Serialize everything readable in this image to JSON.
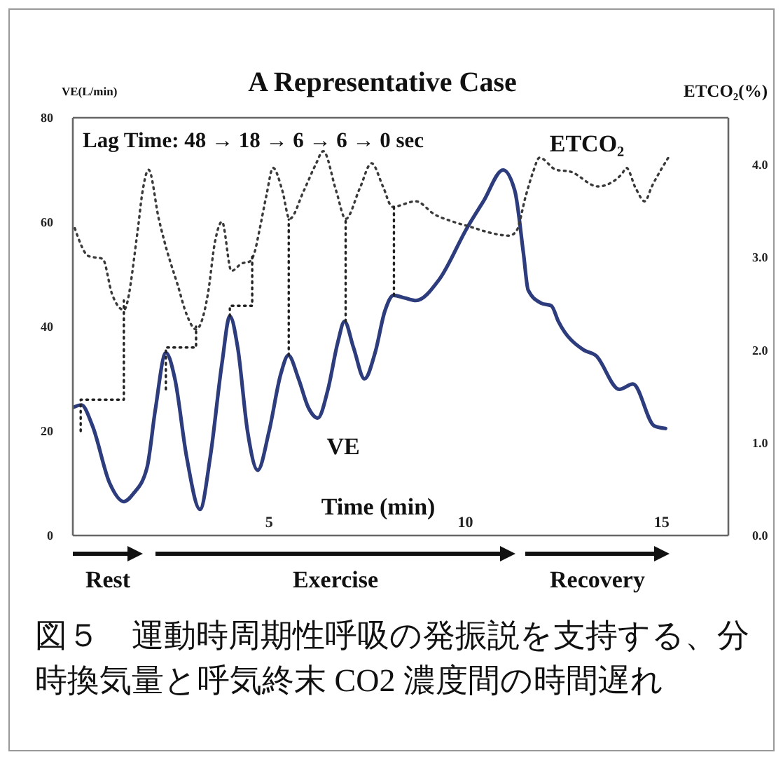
{
  "chart_data": {
    "type": "line",
    "title": "A Representative Case",
    "xlabel": "Time (min)",
    "ylabel": "VE(L/min)",
    "y2label": "ETCO₂(%)",
    "xlim": [
      0,
      16.7
    ],
    "xticks": [
      5,
      10,
      15
    ],
    "ylim": [
      0,
      80
    ],
    "yticks": [
      0,
      20,
      40,
      60,
      80
    ],
    "y2lim": [
      0,
      4.5
    ],
    "y2ticks": [
      {
        "value": 0,
        "label": "0.0"
      },
      {
        "value": 1,
        "label": "1.0"
      },
      {
        "value": 2,
        "label": "2.0"
      },
      {
        "value": 3,
        "label": "3.0"
      },
      {
        "value": 4,
        "label": "4.0"
      }
    ],
    "marker": "none",
    "series": [
      {
        "name": "VE",
        "color": "#2d3c7c",
        "line_style": "solid",
        "x": [
          0,
          0.22,
          0.5,
          0.94,
          1.3,
          1.54,
          1.89,
          2.1,
          2.37,
          2.6,
          2.9,
          3.24,
          3.5,
          3.8,
          4.0,
          4.2,
          4.45,
          4.71,
          5.0,
          5.3,
          5.49,
          5.75,
          6.0,
          6.24,
          6.5,
          6.75,
          6.92,
          7.15,
          7.43,
          7.7,
          7.95,
          8.17,
          8.45,
          8.74,
          9.33,
          10.05,
          10.46,
          10.96,
          11.26,
          11.48,
          11.6,
          11.93,
          12.19,
          12.37,
          13.02,
          13.32,
          13.92,
          14.27,
          14.81,
          15.1
        ],
        "values": [
          24.5,
          25,
          21,
          10,
          6.5,
          8,
          13,
          24,
          35,
          30,
          15,
          5,
          15,
          33,
          42,
          36,
          20,
          12.5,
          20,
          31,
          34.5,
          30,
          24.5,
          22.5,
          28,
          37,
          41,
          36,
          30,
          35,
          43,
          46,
          45.5,
          45,
          49,
          59,
          64,
          70,
          66,
          54,
          47,
          44.5,
          44,
          41,
          35.5,
          34.5,
          28,
          29,
          21,
          20.5
        ]
      },
      {
        "name": "ETCO₂",
        "color": "#3a3a3a",
        "line_style": "dotted",
        "axis": "y2",
        "x": [
          0.05,
          0.4,
          0.76,
          1.0,
          1.3,
          1.65,
          1.77,
          1.93,
          2.19,
          2.37,
          2.67,
          2.9,
          3.14,
          3.44,
          3.62,
          3.8,
          4.04,
          4.3,
          4.5,
          4.63,
          4.75,
          4.93,
          5.1,
          5.34,
          5.52,
          5.88,
          6.18,
          6.38,
          6.71,
          6.95,
          7.31,
          7.61,
          7.9,
          8.14,
          8.74,
          9.21,
          9.69,
          10.17,
          10.64,
          11.12,
          11.3,
          11.54,
          11.72,
          11.89,
          12.31,
          12.67,
          13.38,
          13.98,
          14.1,
          14.34,
          14.57,
          14.75,
          15.17
        ],
        "values": [
          3.31,
          3.01,
          2.98,
          2.6,
          2.43,
          3.28,
          3.69,
          3.94,
          3.41,
          3.11,
          2.7,
          2.38,
          2.22,
          2.6,
          3.16,
          3.38,
          2.85,
          2.93,
          2.95,
          3.05,
          3.28,
          3.66,
          3.96,
          3.71,
          3.41,
          3.71,
          3.99,
          4.14,
          3.71,
          3.41,
          3.74,
          4.01,
          3.76,
          3.54,
          3.6,
          3.46,
          3.38,
          3.32,
          3.26,
          3.23,
          3.28,
          3.66,
          3.91,
          4.07,
          3.94,
          3.92,
          3.76,
          3.89,
          3.96,
          3.74,
          3.6,
          3.76,
          4.07
        ]
      },
      {
        "color": "#222222",
        "line_style": "dotted",
        "x": [
          0.2,
          0.2,
          1.3,
          1.3
        ],
        "values": [
          20,
          26,
          26,
          45
        ]
      },
      {
        "color": "#222222",
        "line_style": "dotted",
        "x": [
          2.37,
          2.37,
          3.14,
          3.14
        ],
        "values": [
          28,
          36,
          36,
          40
        ]
      },
      {
        "color": "#222222",
        "line_style": "dotted",
        "x": [
          4.0,
          4.0,
          4.57,
          4.57
        ],
        "values": [
          42,
          44,
          44,
          54
        ]
      },
      {
        "color": "#222222",
        "line_style": "dotted",
        "x": [
          5.5,
          5.5
        ],
        "values": [
          34.5,
          60.5
        ]
      },
      {
        "color": "#222222",
        "line_style": "dotted",
        "x": [
          6.95,
          6.95
        ],
        "values": [
          41,
          60.5
        ]
      },
      {
        "color": "#222222",
        "line_style": "dotted",
        "x": [
          8.18,
          8.18
        ],
        "values": [
          46,
          63
        ]
      }
    ],
    "annotations": [
      "Lag Time: 48 → 18 → 6 → 6 → 0 sec",
      "Rest",
      "Exercise",
      "Recovery",
      "図５　運動時周期性呼吸の発振説を支持する、分時換気量と呼気終末 CO2 濃度間の時間遅れ"
    ]
  }
}
